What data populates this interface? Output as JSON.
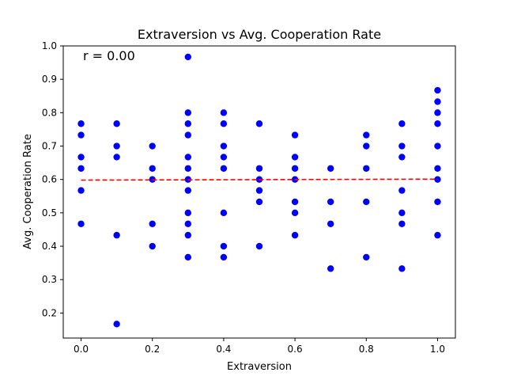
{
  "chart_data": {
    "type": "scatter",
    "title": "Extraversion vs Avg. Cooperation Rate",
    "xlabel": "Extraversion",
    "ylabel": "Avg. Cooperation Rate",
    "xlim": [
      -0.05,
      1.05
    ],
    "ylim": [
      0.125,
      1.0
    ],
    "xticks": [
      0.0,
      0.2,
      0.4,
      0.6,
      0.8,
      1.0
    ],
    "xtick_labels": [
      "0.0",
      "0.2",
      "0.4",
      "0.6",
      "0.8",
      "1.0"
    ],
    "yticks": [
      0.2,
      0.3,
      0.4,
      0.5,
      0.6,
      0.7,
      0.8,
      0.9,
      1.0
    ],
    "ytick_labels": [
      "0.2",
      "0.3",
      "0.4",
      "0.5",
      "0.6",
      "0.7",
      "0.8",
      "0.9",
      "1.0"
    ],
    "annotation": "r = 0.00",
    "point_color": "#0000ff",
    "trend_color": "#ff0000",
    "trend_line": {
      "x": [
        0.0,
        1.0
      ],
      "y": [
        0.598,
        0.601
      ]
    },
    "points": [
      {
        "x": 0.0,
        "y": 0.767
      },
      {
        "x": 0.0,
        "y": 0.733
      },
      {
        "x": 0.0,
        "y": 0.667
      },
      {
        "x": 0.0,
        "y": 0.633
      },
      {
        "x": 0.0,
        "y": 0.567
      },
      {
        "x": 0.0,
        "y": 0.467
      },
      {
        "x": 0.1,
        "y": 0.767
      },
      {
        "x": 0.1,
        "y": 0.7
      },
      {
        "x": 0.1,
        "y": 0.667
      },
      {
        "x": 0.1,
        "y": 0.433
      },
      {
        "x": 0.1,
        "y": 0.167
      },
      {
        "x": 0.2,
        "y": 0.7
      },
      {
        "x": 0.2,
        "y": 0.633
      },
      {
        "x": 0.2,
        "y": 0.6
      },
      {
        "x": 0.2,
        "y": 0.467
      },
      {
        "x": 0.2,
        "y": 0.4
      },
      {
        "x": 0.3,
        "y": 0.967
      },
      {
        "x": 0.3,
        "y": 0.8
      },
      {
        "x": 0.3,
        "y": 0.767
      },
      {
        "x": 0.3,
        "y": 0.733
      },
      {
        "x": 0.3,
        "y": 0.667
      },
      {
        "x": 0.3,
        "y": 0.633
      },
      {
        "x": 0.3,
        "y": 0.6
      },
      {
        "x": 0.3,
        "y": 0.567
      },
      {
        "x": 0.3,
        "y": 0.5
      },
      {
        "x": 0.3,
        "y": 0.467
      },
      {
        "x": 0.3,
        "y": 0.433
      },
      {
        "x": 0.3,
        "y": 0.367
      },
      {
        "x": 0.4,
        "y": 0.8
      },
      {
        "x": 0.4,
        "y": 0.767
      },
      {
        "x": 0.4,
        "y": 0.7
      },
      {
        "x": 0.4,
        "y": 0.667
      },
      {
        "x": 0.4,
        "y": 0.633
      },
      {
        "x": 0.4,
        "y": 0.5
      },
      {
        "x": 0.4,
        "y": 0.4
      },
      {
        "x": 0.4,
        "y": 0.367
      },
      {
        "x": 0.5,
        "y": 0.767
      },
      {
        "x": 0.5,
        "y": 0.633
      },
      {
        "x": 0.5,
        "y": 0.6
      },
      {
        "x": 0.5,
        "y": 0.567
      },
      {
        "x": 0.5,
        "y": 0.533
      },
      {
        "x": 0.5,
        "y": 0.4
      },
      {
        "x": 0.6,
        "y": 0.733
      },
      {
        "x": 0.6,
        "y": 0.667
      },
      {
        "x": 0.6,
        "y": 0.633
      },
      {
        "x": 0.6,
        "y": 0.6
      },
      {
        "x": 0.6,
        "y": 0.533
      },
      {
        "x": 0.6,
        "y": 0.5
      },
      {
        "x": 0.6,
        "y": 0.433
      },
      {
        "x": 0.7,
        "y": 0.633
      },
      {
        "x": 0.7,
        "y": 0.533
      },
      {
        "x": 0.7,
        "y": 0.467
      },
      {
        "x": 0.7,
        "y": 0.333
      },
      {
        "x": 0.8,
        "y": 0.733
      },
      {
        "x": 0.8,
        "y": 0.7
      },
      {
        "x": 0.8,
        "y": 0.633
      },
      {
        "x": 0.8,
        "y": 0.533
      },
      {
        "x": 0.8,
        "y": 0.367
      },
      {
        "x": 0.9,
        "y": 0.767
      },
      {
        "x": 0.9,
        "y": 0.7
      },
      {
        "x": 0.9,
        "y": 0.667
      },
      {
        "x": 0.9,
        "y": 0.567
      },
      {
        "x": 0.9,
        "y": 0.5
      },
      {
        "x": 0.9,
        "y": 0.467
      },
      {
        "x": 0.9,
        "y": 0.333
      },
      {
        "x": 1.0,
        "y": 0.867
      },
      {
        "x": 1.0,
        "y": 0.833
      },
      {
        "x": 1.0,
        "y": 0.8
      },
      {
        "x": 1.0,
        "y": 0.767
      },
      {
        "x": 1.0,
        "y": 0.7
      },
      {
        "x": 1.0,
        "y": 0.633
      },
      {
        "x": 1.0,
        "y": 0.6
      },
      {
        "x": 1.0,
        "y": 0.533
      },
      {
        "x": 1.0,
        "y": 0.433
      }
    ]
  }
}
